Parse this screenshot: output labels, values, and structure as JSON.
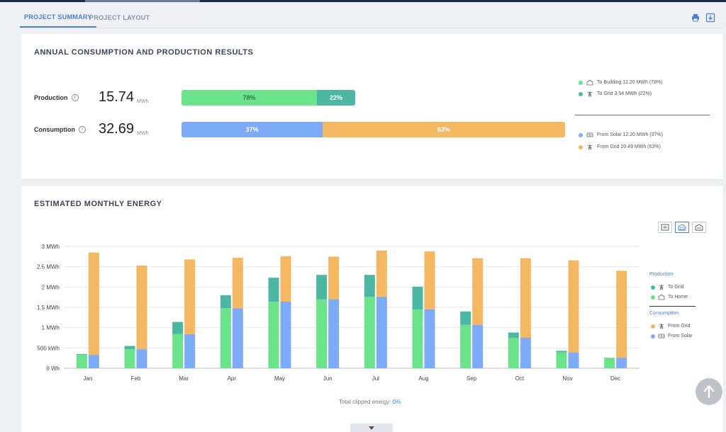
{
  "tabs": [
    {
      "label": "PROJECT SUMMARY",
      "active": true
    },
    {
      "label": "PROJECT LAYOUT",
      "active": false
    }
  ],
  "annual": {
    "title": "ANNUAL CONSUMPTION AND PRODUCTION RESULTS",
    "production": {
      "label": "Production",
      "value": "15.74",
      "unit": "MWh",
      "segments": [
        {
          "label": "78%",
          "color": "#6ae38b"
        },
        {
          "label": "22%",
          "color": "#4cb8a4"
        }
      ]
    },
    "consumption": {
      "label": "Consumption",
      "value": "32.69",
      "unit": "MWh",
      "segments": [
        {
          "label": "37%",
          "color": "#7eabf7"
        },
        {
          "label": "63%",
          "color": "#f4b762"
        }
      ]
    },
    "legend": [
      {
        "text": "To Building 12.20 MWh  (78%)",
        "color": "#6ae38b",
        "icon": "building-icon"
      },
      {
        "text": "To Grid 3.54 MWh  (22%)",
        "color": "#4cb8a4",
        "icon": "grid-tower-icon"
      },
      {
        "text": "From Solar 12.20 MWh  (37%)",
        "color": "#7eabf7",
        "icon": "solar-panel-icon"
      },
      {
        "text": "From Grid 20.49 MWh  (63%)",
        "color": "#f4b762",
        "icon": "grid-tower-icon"
      }
    ]
  },
  "monthly": {
    "title": "ESTIMATED MONTHLY ENERGY",
    "clipped_label": "Total clipped energy:",
    "clipped_value": "0%",
    "legend": {
      "production_title": "Production",
      "production_items": [
        "To Grid",
        "To Home"
      ],
      "consumption_title": "Consumption",
      "consumption_items": [
        "From Grid",
        "From Solar"
      ]
    }
  },
  "chart_data": {
    "type": "bar",
    "title": "ESTIMATED MONTHLY ENERGY",
    "categories": [
      "Jan",
      "Feb",
      "Mar",
      "Apr",
      "May",
      "Jun",
      "Jul",
      "Aug",
      "Sep",
      "Oct",
      "Nov",
      "Dec"
    ],
    "ytick_labels": [
      "0 Wh",
      "500 kWh",
      "1 MWh",
      "1.5 MWh",
      "2 MWh",
      "2.5 MWh",
      "3 MWh"
    ],
    "ylim": [
      0,
      3000
    ],
    "yunit": "kWh",
    "grid": true,
    "legend_position": "right",
    "series": [
      {
        "name": "To Home",
        "stack": "Production",
        "color": "#6ae38b",
        "values": [
          330,
          470,
          840,
          1480,
          1640,
          1700,
          1760,
          1450,
          1070,
          750,
          390,
          260
        ]
      },
      {
        "name": "To Grid",
        "stack": "Production",
        "color": "#4cb8a4",
        "values": [
          20,
          80,
          300,
          320,
          590,
          600,
          540,
          560,
          330,
          130,
          40,
          0
        ]
      },
      {
        "name": "From Solar",
        "stack": "Consumption",
        "color": "#7eabf7",
        "values": [
          330,
          470,
          840,
          1480,
          1640,
          1700,
          1760,
          1450,
          1070,
          750,
          390,
          260
        ]
      },
      {
        "name": "From Grid",
        "stack": "Consumption",
        "color": "#f4b762",
        "values": [
          2520,
          2060,
          1840,
          1240,
          1120,
          1050,
          1140,
          1430,
          1640,
          1960,
          2270,
          2140
        ]
      }
    ]
  }
}
